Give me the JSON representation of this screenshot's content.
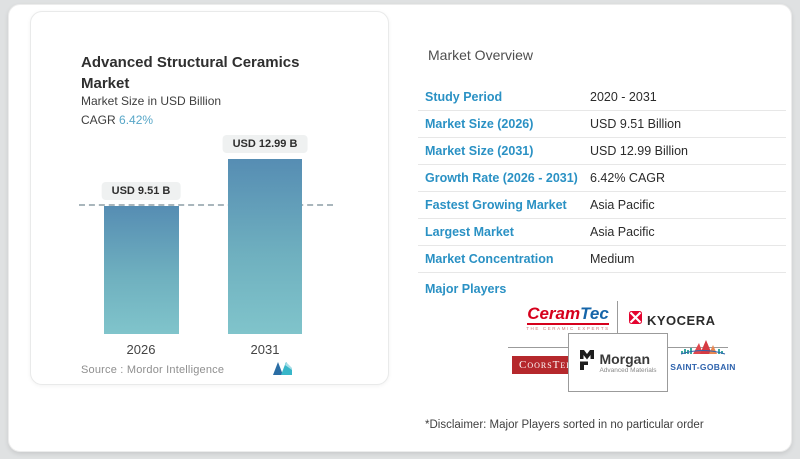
{
  "chart_card": {
    "title": "Advanced Structural Ceramics Market",
    "subtitle": "Market Size in USD Billion",
    "cagr_label": "CAGR",
    "cagr_value": "6.42%",
    "source_label": "Source :",
    "source_brand": "Mordor Intelligence",
    "accent_color": "#58a7c8"
  },
  "chart_data": {
    "type": "bar",
    "categories": [
      "2026",
      "2031"
    ],
    "values": [
      9.51,
      12.99
    ],
    "value_labels": [
      "USD 9.51 B",
      "USD 12.99 B"
    ],
    "title": "Advanced Structural Ceramics Market",
    "ylabel": "Market Size in USD Billion",
    "ylim": [
      0,
      14
    ],
    "grid": false,
    "reference_line": 9.51,
    "bar_gradient_top": "#568db3",
    "bar_gradient_bottom": "#80c4cb",
    "legend": "none"
  },
  "overview": {
    "title": "Market Overview",
    "label_color": "#2a91c4",
    "rows": [
      {
        "label": "Study Period",
        "value": "2020 - 2031"
      },
      {
        "label": "Market Size (2026)",
        "value": "USD 9.51 Billion"
      },
      {
        "label": "Market Size (2031)",
        "value": "USD 12.99 Billion"
      },
      {
        "label": "Growth Rate (2026 - 2031)",
        "value": "6.42% CAGR"
      },
      {
        "label": "Fastest Growing Market",
        "value": "Asia Pacific"
      },
      {
        "label": "Largest Market",
        "value": "Asia Pacific"
      },
      {
        "label": "Market Concentration",
        "value": "Medium"
      }
    ],
    "major_players_label": "Major Players",
    "players": {
      "ceramtec": {
        "part1": "Ceram",
        "part2": "Tec",
        "tagline": "THE CERAMIC EXPERTS",
        "red": "#d6001c",
        "blue": "#1565a9"
      },
      "kyocera": {
        "text": "KYOCERA",
        "red": "#e4032e"
      },
      "coorstek": {
        "text": "CoorsTek",
        "red": "#b5282c"
      },
      "morgan": {
        "text": "Morgan",
        "subtext": "Advanced Materials"
      },
      "saint_gobain": {
        "text": "SAINT-GOBAIN",
        "blue": "#2e63ad"
      }
    },
    "disclaimer": "*Disclaimer: Major Players sorted in no particular order"
  }
}
